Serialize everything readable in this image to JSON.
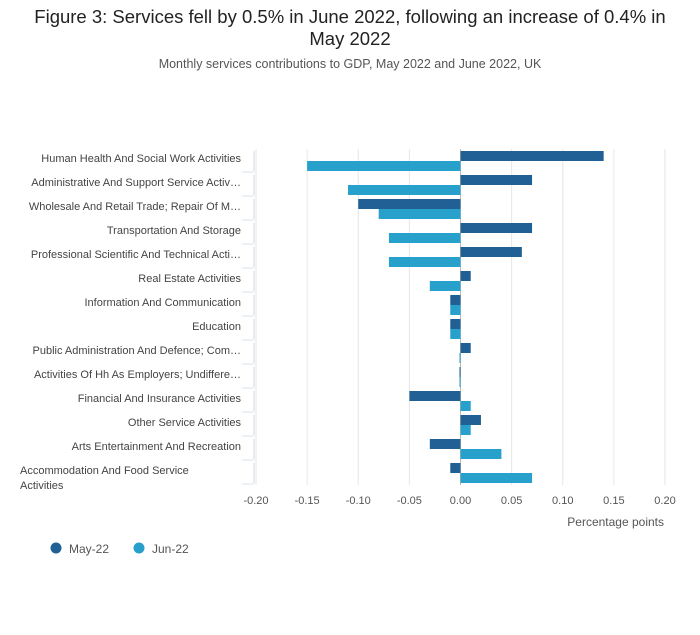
{
  "title": "Figure 3: Services fell by 0.5% in June 2022, following an increase of 0.4% in May 2022",
  "subtitle": "Monthly services contributions to GDP, May 2022 and June 2022, UK",
  "chart_data": {
    "type": "bar",
    "orientation": "horizontal",
    "title": "Figure 3: Services fell by 0.5% in June 2022, following an increase of 0.4% in May 2022",
    "subtitle": "Monthly services contributions to GDP, May 2022 and June 2022, UK",
    "xlabel": "Percentage points",
    "ylabel": "",
    "xlim": [
      -0.2,
      0.2
    ],
    "xticks": [
      -0.2,
      -0.15,
      -0.1,
      -0.05,
      0,
      0.05,
      0.1,
      0.15,
      0.2
    ],
    "xtick_labels": [
      "-0.20",
      "-0.15",
      "-0.10",
      "-0.05",
      "0.00",
      "0.05",
      "0.10",
      "0.15",
      "0.20"
    ],
    "grid": true,
    "legend_position": "bottom-left",
    "categories": [
      [
        "Human Health And Social Work Activities"
      ],
      [
        "Administrative And Support Service Activ…"
      ],
      [
        "Wholesale And Retail Trade; Repair Of M…"
      ],
      [
        "Transportation And Storage"
      ],
      [
        "Professional Scientific And Technical Acti…"
      ],
      [
        "Real Estate Activities"
      ],
      [
        "Information And Communication"
      ],
      [
        "Education"
      ],
      [
        "Public Administration And Defence; Com…"
      ],
      [
        "Activities Of Hh As Employers; Undiffere…"
      ],
      [
        "Financial And Insurance Activities"
      ],
      [
        "Other Service Activities"
      ],
      [
        "Arts Entertainment And Recreation"
      ],
      [
        "Accommodation And Food Service",
        "Activities"
      ]
    ],
    "series": [
      {
        "name": "May-22",
        "color": "#206095",
        "values": [
          0.14,
          0.07,
          -0.1,
          0.07,
          0.06,
          0.01,
          -0.01,
          -0.01,
          0.01,
          -0.001,
          -0.05,
          0.02,
          -0.03,
          -0.01
        ]
      },
      {
        "name": "Jun-22",
        "color": "#27a0cc",
        "values": [
          -0.15,
          -0.11,
          -0.08,
          -0.07,
          -0.07,
          -0.03,
          -0.01,
          -0.01,
          -0.001,
          -0.001,
          0.01,
          0.01,
          0.04,
          0.07
        ]
      }
    ]
  }
}
